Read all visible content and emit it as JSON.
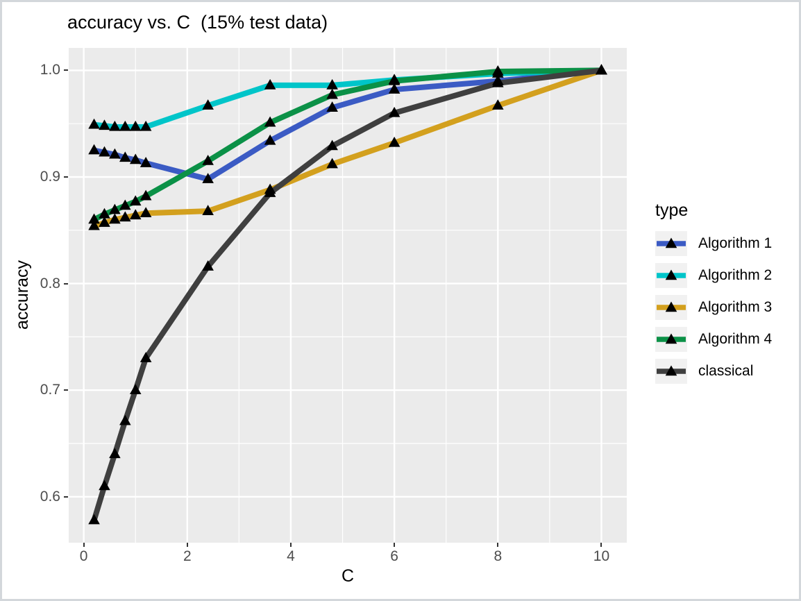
{
  "window": {
    "background": "#ffffff",
    "border_color": "#d3d7db"
  },
  "chart_data": {
    "type": "line",
    "title": "accuracy vs. C  (15% test data)",
    "xlabel": "C",
    "ylabel": "accuracy",
    "legend_title": "type",
    "legend_position": "right",
    "grid": true,
    "marker": "triangle",
    "marker_color": "#000000",
    "panel_bg": "#ebebeb",
    "grid_color": "#ffffff",
    "tick_label_color": "#4d4d4d",
    "legend_key_bg": "#f1f1f1",
    "x_domain": [
      -0.29,
      10.49
    ],
    "y_domain": [
      0.5569,
      1.0211
    ],
    "x": [
      0.2,
      0.4,
      0.6,
      0.8,
      1.0,
      1.2,
      2.4,
      3.6,
      4.8,
      6.0,
      8.0,
      10.0
    ],
    "series": [
      {
        "name": "Algorithm 1",
        "color": "#3b5bc4",
        "values": [
          0.925,
          0.923,
          0.921,
          0.918,
          0.916,
          0.913,
          0.898,
          0.934,
          0.965,
          0.982,
          0.99,
          1.0
        ]
      },
      {
        "name": "Algorithm 2",
        "color": "#00c5c9",
        "values": [
          0.949,
          0.948,
          0.947,
          0.947,
          0.947,
          0.947,
          0.967,
          0.986,
          0.986,
          0.991,
          0.997,
          1.0
        ]
      },
      {
        "name": "Algorithm 3",
        "color": "#d3a01e",
        "values": [
          0.854,
          0.857,
          0.86,
          0.862,
          0.864,
          0.866,
          0.868,
          0.888,
          0.912,
          0.932,
          0.967,
          1.0
        ]
      },
      {
        "name": "Algorithm 4",
        "color": "#0b9147",
        "values": [
          0.86,
          0.865,
          0.869,
          0.873,
          0.877,
          0.882,
          0.915,
          0.951,
          0.977,
          0.99,
          0.999,
          1.0
        ]
      },
      {
        "name": "classical",
        "color": "#3f3f3f",
        "values": [
          0.578,
          0.61,
          0.64,
          0.671,
          0.7,
          0.73,
          0.816,
          0.885,
          0.929,
          0.96,
          0.988,
          1.0
        ]
      }
    ],
    "x_ticks_major": {
      "values": [
        0,
        2,
        4,
        6,
        8,
        10
      ],
      "labels": [
        "0",
        "2",
        "4",
        "6",
        "8",
        "10"
      ]
    },
    "x_ticks_minor": [
      1,
      3,
      5,
      7,
      9
    ],
    "y_ticks_major": {
      "values": [
        1.0,
        0.9,
        0.8,
        0.7,
        0.6
      ],
      "labels": [
        "1.0",
        "0.9",
        "0.8",
        "0.7",
        "0.6"
      ]
    },
    "y_ticks_minor": [
      0.95,
      0.85,
      0.75,
      0.65
    ]
  }
}
